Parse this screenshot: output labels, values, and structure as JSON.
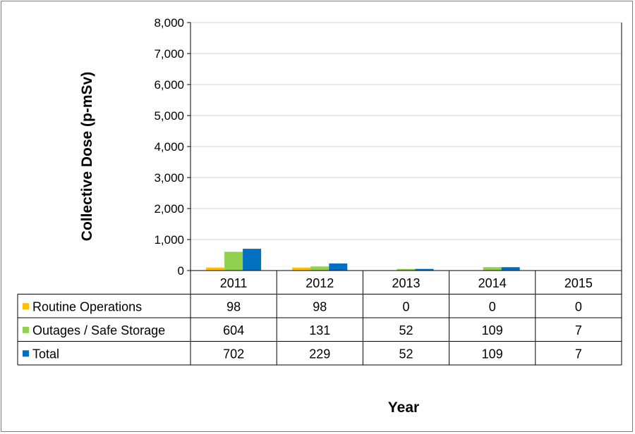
{
  "chart_data": {
    "type": "bar",
    "ylabel": "Collective Dose (p-mSv)",
    "xlabel": "Year",
    "ylim": [
      0,
      8000
    ],
    "yticks": [
      "0",
      "1,000",
      "2,000",
      "3,000",
      "4,000",
      "5,000",
      "6,000",
      "7,000",
      "8,000"
    ],
    "categories": [
      "2011",
      "2012",
      "2013",
      "2014",
      "2015"
    ],
    "series": [
      {
        "name": "Routine Operations",
        "color": "#FFC000",
        "values": [
          98,
          98,
          0,
          0,
          0
        ],
        "labels": [
          "98",
          "98",
          "0",
          "0",
          "0"
        ]
      },
      {
        "name": "Outages / Safe Storage",
        "color": "#92D050",
        "values": [
          604,
          131,
          52,
          109,
          7
        ],
        "labels": [
          "604",
          "131",
          "52",
          "109",
          "7"
        ]
      },
      {
        "name": "Total",
        "color": "#0070C0",
        "values": [
          702,
          229,
          52,
          109,
          7
        ],
        "labels": [
          "702",
          "229",
          "52",
          "109",
          "7"
        ]
      }
    ],
    "grid": true,
    "legend": "data-table"
  }
}
